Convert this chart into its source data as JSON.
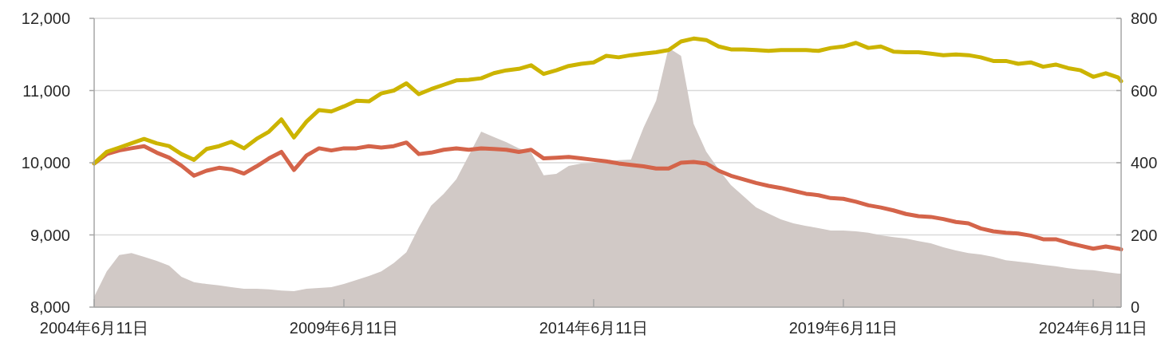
{
  "chart_data": {
    "type": "line",
    "x": [
      "2004-06-11",
      "2004-09-11",
      "2004-12-11",
      "2005-03-11",
      "2005-06-11",
      "2005-09-11",
      "2005-12-11",
      "2006-03-11",
      "2006-06-11",
      "2006-09-11",
      "2006-12-11",
      "2007-03-11",
      "2007-06-11",
      "2007-09-11",
      "2007-12-11",
      "2008-03-11",
      "2008-06-11",
      "2008-09-11",
      "2008-12-11",
      "2009-03-11",
      "2009-06-11",
      "2009-09-11",
      "2009-12-11",
      "2010-03-11",
      "2010-06-11",
      "2010-09-11",
      "2010-12-11",
      "2011-03-11",
      "2011-06-11",
      "2011-09-11",
      "2011-12-11",
      "2012-03-11",
      "2012-06-11",
      "2012-09-11",
      "2012-12-11",
      "2013-03-11",
      "2013-06-11",
      "2013-09-11",
      "2013-12-11",
      "2014-03-11",
      "2014-06-11",
      "2014-09-11",
      "2014-12-11",
      "2015-03-11",
      "2015-06-11",
      "2015-09-11",
      "2015-12-11",
      "2016-03-11",
      "2016-06-11",
      "2016-09-11",
      "2016-12-11",
      "2017-03-11",
      "2017-06-11",
      "2017-09-11",
      "2017-12-11",
      "2018-03-11",
      "2018-06-11",
      "2018-09-11",
      "2018-12-11",
      "2019-03-11",
      "2019-06-11",
      "2019-09-11",
      "2019-12-11",
      "2020-03-11",
      "2020-06-11",
      "2020-09-11",
      "2020-12-11",
      "2021-03-11",
      "2021-06-11",
      "2021-09-11",
      "2021-12-11",
      "2022-03-11",
      "2022-06-11",
      "2022-09-11",
      "2022-12-11",
      "2023-03-11",
      "2023-06-11",
      "2023-09-11",
      "2023-12-11",
      "2024-03-11",
      "2024-06-11",
      "2024-09-11",
      "2024-12-11",
      "2025-01-01"
    ],
    "series": [
      {
        "type": "area",
        "axis": "y2",
        "color": "#d1c9c6",
        "values": [
          29,
          99,
          144,
          150,
          139,
          128,
          115,
          84,
          69,
          64,
          60,
          55,
          51,
          51,
          49,
          46,
          44,
          51,
          53,
          55,
          64,
          75,
          86,
          99,
          122,
          152,
          221,
          281,
          314,
          354,
          420,
          486,
          471,
          457,
          440,
          429,
          365,
          369,
          391,
          398,
          400,
          404,
          407,
          409,
          497,
          572,
          718,
          696,
          508,
          431,
          382,
          338,
          307,
          276,
          259,
          243,
          232,
          225,
          219,
          212,
          212,
          210,
          206,
          199,
          194,
          190,
          183,
          177,
          166,
          157,
          150,
          146,
          139,
          130,
          126,
          122,
          117,
          113,
          108,
          104,
          102,
          97,
          93,
          93
        ]
      },
      {
        "color": "#d4644a",
        "values": [
          9990,
          10120,
          10170,
          10200,
          10230,
          10140,
          10070,
          9960,
          9820,
          9890,
          9930,
          9910,
          9850,
          9950,
          10060,
          10150,
          9900,
          10100,
          10200,
          10170,
          10200,
          10200,
          10230,
          10210,
          10230,
          10280,
          10120,
          10140,
          10180,
          10200,
          10180,
          10200,
          10190,
          10180,
          10150,
          10180,
          10060,
          10070,
          10080,
          10060,
          10040,
          10020,
          9990,
          9970,
          9950,
          9920,
          9920,
          10000,
          10010,
          9990,
          9890,
          9820,
          9770,
          9720,
          9680,
          9650,
          9610,
          9570,
          9550,
          9510,
          9500,
          9460,
          9410,
          9380,
          9340,
          9290,
          9260,
          9250,
          9220,
          9180,
          9160,
          9090,
          9050,
          9030,
          9020,
          8990,
          8940,
          8940,
          8890,
          8850,
          8810,
          8840,
          8810,
          8800
        ]
      },
      {
        "color": "#ccb400",
        "values": [
          9990,
          10150,
          10210,
          10270,
          10330,
          10270,
          10230,
          10120,
          10040,
          10190,
          10230,
          10290,
          10200,
          10330,
          10430,
          10600,
          10350,
          10570,
          10730,
          10710,
          10780,
          10860,
          10850,
          10960,
          11000,
          11100,
          10950,
          11020,
          11080,
          11140,
          11150,
          11170,
          11240,
          11280,
          11300,
          11350,
          11230,
          11280,
          11340,
          11370,
          11390,
          11480,
          11460,
          11490,
          11510,
          11530,
          11560,
          11680,
          11720,
          11700,
          11610,
          11570,
          11570,
          11560,
          11550,
          11560,
          11560,
          11560,
          11550,
          11590,
          11610,
          11660,
          11590,
          11610,
          11540,
          11530,
          11530,
          11510,
          11490,
          11500,
          11490,
          11460,
          11410,
          11410,
          11370,
          11390,
          11330,
          11360,
          11310,
          11280,
          11190,
          11240,
          11180,
          11130
        ]
      }
    ],
    "xlim": [
      "2004-06-11",
      "2025-01-01"
    ],
    "xticks": [
      {
        "value": "2004-06-11",
        "label": "2004年6月11日"
      },
      {
        "value": "2009-06-11",
        "label": "2009年6月11日"
      },
      {
        "value": "2014-06-11",
        "label": "2014年6月11日"
      },
      {
        "value": "2019-06-11",
        "label": "2019年6月11日"
      },
      {
        "value": "2024-06-11",
        "label": "2024年6月11日"
      }
    ],
    "ylim": [
      8000,
      12000
    ],
    "yticks": [
      {
        "value": 8000,
        "label": "8,000"
      },
      {
        "value": 9000,
        "label": "9,000"
      },
      {
        "value": 10000,
        "label": "10,000"
      },
      {
        "value": 11000,
        "label": "11,000"
      },
      {
        "value": 12000,
        "label": "12,000"
      }
    ],
    "y2lim": [
      0,
      800
    ],
    "y2ticks": [
      0,
      200,
      400,
      600,
      800
    ],
    "grid": "y",
    "marker": "none",
    "line_style": "solid"
  }
}
